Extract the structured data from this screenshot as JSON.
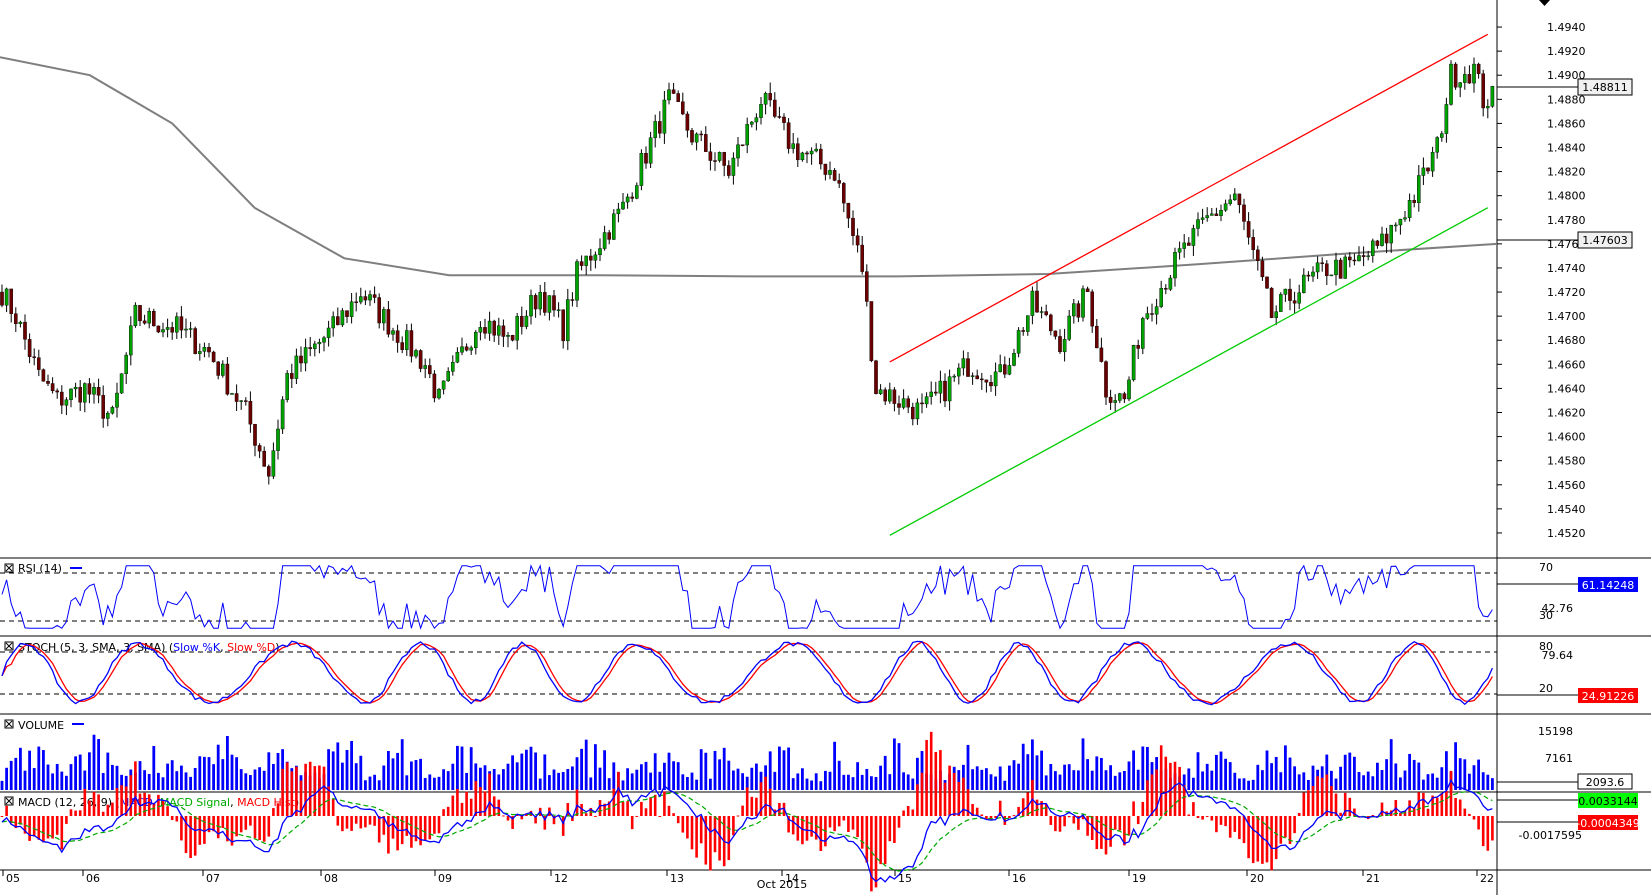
{
  "chart_data": {
    "type": "candlestick",
    "ylim": [
      1.451,
      1.495
    ],
    "y_ticks": [
      "1.4940",
      "1.4920",
      "1.4900",
      "1.4880",
      "1.4860",
      "1.4840",
      "1.4820",
      "1.4800",
      "1.4780",
      "1.4760",
      "1.4740",
      "1.4720",
      "1.4700",
      "1.4680",
      "1.4660",
      "1.4640",
      "1.4620",
      "1.4600",
      "1.4580",
      "1.4560",
      "1.4540",
      "1.4520"
    ],
    "x_day_labels": [
      "05",
      "06",
      "07",
      "08",
      "09",
      "12",
      "13",
      "14",
      "15",
      "16",
      "19",
      "20",
      "21",
      "22"
    ],
    "month_label": "Oct 2015",
    "last_price": "1.48811",
    "ma_value": "1.47603",
    "seed": 1.472,
    "anchors": [
      [
        0,
        1.472
      ],
      [
        3,
        1.47
      ],
      [
        8,
        1.465
      ],
      [
        12,
        1.463
      ],
      [
        18,
        1.464
      ],
      [
        24,
        1.4615
      ],
      [
        29,
        1.47
      ],
      [
        38,
        1.469
      ],
      [
        45,
        1.467
      ],
      [
        53,
        1.462
      ],
      [
        58,
        1.457
      ],
      [
        62,
        1.465
      ],
      [
        72,
        1.469
      ],
      [
        78,
        1.472
      ],
      [
        85,
        1.469
      ],
      [
        92,
        1.466
      ],
      [
        95,
        1.463
      ],
      [
        104,
        1.47
      ],
      [
        110,
        1.468
      ],
      [
        117,
        1.472
      ],
      [
        122,
        1.469
      ],
      [
        125,
        1.4735
      ],
      [
        135,
        1.479
      ],
      [
        145,
        1.488
      ],
      [
        150,
        1.485
      ],
      [
        158,
        1.482
      ],
      [
        165,
        1.488
      ],
      [
        172,
        1.484
      ],
      [
        181,
        1.482
      ],
      [
        187,
        1.474
      ],
      [
        190,
        1.464
      ],
      [
        195,
        1.463
      ],
      [
        200,
        1.462
      ],
      [
        210,
        1.466
      ],
      [
        217,
        1.465
      ],
      [
        224,
        1.471
      ],
      [
        230,
        1.468
      ],
      [
        236,
        1.472
      ],
      [
        240,
        1.464
      ],
      [
        244,
        1.463
      ],
      [
        248,
        1.47
      ],
      [
        256,
        1.475
      ],
      [
        262,
        1.478
      ],
      [
        268,
        1.48
      ],
      [
        272,
        1.475
      ],
      [
        276,
        1.47
      ],
      [
        281,
        1.472
      ],
      [
        288,
        1.474
      ],
      [
        293,
        1.474
      ],
      [
        300,
        1.476
      ],
      [
        307,
        1.48
      ],
      [
        312,
        1.484
      ],
      [
        315,
        1.49
      ],
      [
        320,
        1.4905
      ],
      [
        322,
        1.488
      ]
    ],
    "ma_curve": [
      [
        0,
        1.4915
      ],
      [
        60,
        1.49
      ],
      [
        115,
        1.486
      ],
      [
        170,
        1.479
      ],
      [
        230,
        1.4748
      ],
      [
        300,
        1.4734
      ],
      [
        400,
        1.4734
      ],
      [
        500,
        1.4733
      ],
      [
        600,
        1.4733
      ],
      [
        700,
        1.4735
      ],
      [
        800,
        1.4743
      ],
      [
        900,
        1.4752
      ],
      [
        1000,
        1.476
      ]
    ],
    "channel": {
      "upper": {
        "color": "#ff0000",
        "from": [
          193,
          1.4662
        ],
        "to": [
          323,
          1.4934
        ]
      },
      "lower": {
        "color": "#00cc00",
        "from": [
          193,
          1.4518
        ],
        "to": [
          323,
          1.479
        ]
      }
    },
    "rsi": {
      "label": "RSI (14)",
      "levels": [
        "70",
        "30"
      ],
      "tick": "42.76",
      "value": "61.14248",
      "line_color": "#0000ff",
      "tag_color": "#0000ff"
    },
    "stoch": {
      "label_prefix": "STOCH (5, 3, SMA, 3, SMA) (",
      "label_k": "Slow %K",
      "label_d": "Slow %D",
      "label_suffix": ")",
      "levels": [
        "80",
        "20"
      ],
      "tick": "79.64",
      "value": "24.91226",
      "k_color": "#0000ff",
      "d_color": "#ff0000",
      "tag_color": "#ff0000"
    },
    "volume": {
      "label": "VOLUME",
      "ticks": [
        "15198",
        "7161"
      ],
      "value": "2093.6",
      "bar_color": "#0000ff"
    },
    "macd": {
      "label_prefix": "MACD (12, 26, 9) (",
      "label_macd": "MACD",
      "label_signal": "MACD Signal",
      "label_hist": "MACD Hist",
      "label_suffix": ")",
      "value_macd": "0.0033144",
      "value_hist": "-0.0004349",
      "tick": "-0.0017595",
      "macd_color": "#0000ff",
      "signal_color": "#00aa00",
      "hist_color": "#ff0000"
    }
  }
}
